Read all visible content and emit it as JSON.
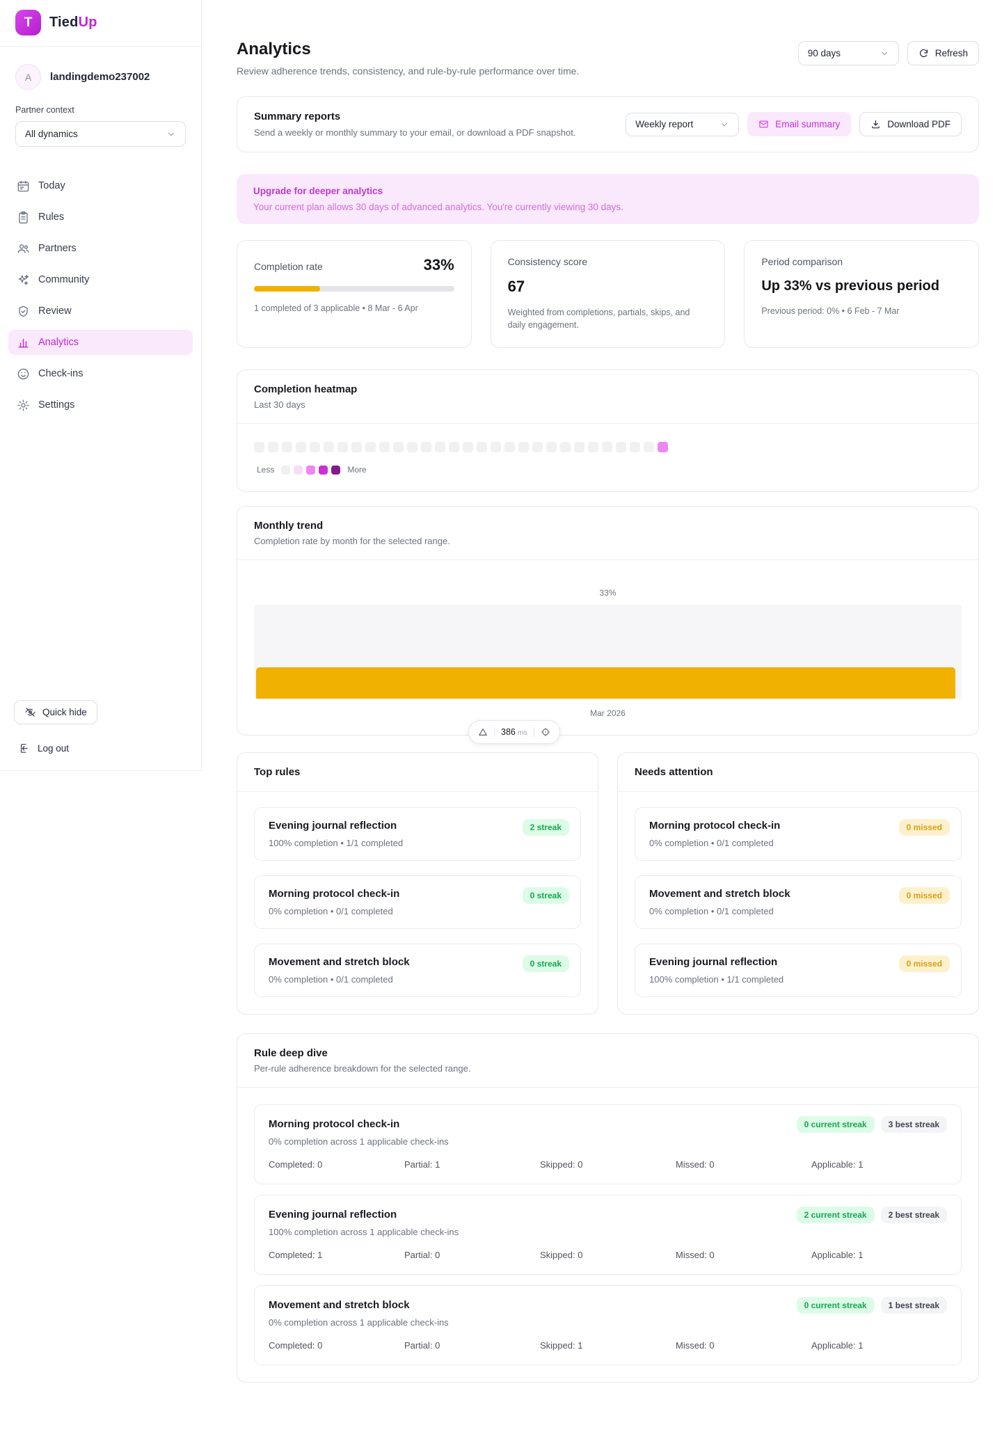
{
  "brand": {
    "logo_letter": "T",
    "name_primary": "Tied",
    "name_accent": "Up"
  },
  "sidebar": {
    "user": {
      "avatar_letter": "A",
      "username": "landingdemo237002"
    },
    "partner_context_label": "Partner context",
    "partner_select_value": "All dynamics",
    "items": [
      {
        "label": "Today"
      },
      {
        "label": "Rules"
      },
      {
        "label": "Partners"
      },
      {
        "label": "Community"
      },
      {
        "label": "Review"
      },
      {
        "label": "Analytics"
      },
      {
        "label": "Check-ins"
      },
      {
        "label": "Settings"
      }
    ],
    "quick_hide_label": "Quick hide",
    "logout_label": "Log out"
  },
  "header": {
    "title": "Analytics",
    "subtitle": "Review adherence trends, consistency, and rule-by-rule performance over time.",
    "range_select_value": "90 days",
    "refresh_label": "Refresh"
  },
  "summary": {
    "title": "Summary reports",
    "description": "Send a weekly or monthly summary to your email, or download a PDF snapshot.",
    "report_select_value": "Weekly report",
    "email_button_label": "Email summary",
    "download_button_label": "Download PDF"
  },
  "upgrade_banner": {
    "title": "Upgrade for deeper analytics",
    "body": "Your current plan allows 30 days of advanced analytics. You're currently viewing 30 days."
  },
  "stats": {
    "completion": {
      "label": "Completion rate",
      "value": "33%",
      "percent": 33,
      "caption": "1 completed of 3 applicable • 8 Mar - 6 Apr"
    },
    "consistency": {
      "label": "Consistency score",
      "value": "67",
      "caption": "Weighted from completions, partials, skips, and daily engagement."
    },
    "period": {
      "label": "Period comparison",
      "value": "Up 33% vs previous period",
      "caption": "Previous period: 0% • 6 Feb - 7 Mar"
    }
  },
  "heatmap": {
    "title": "Completion heatmap",
    "subtitle": "Last 30 days",
    "levels": [
      0,
      0,
      0,
      0,
      0,
      0,
      0,
      0,
      0,
      0,
      0,
      0,
      0,
      0,
      0,
      0,
      0,
      0,
      0,
      0,
      0,
      0,
      0,
      0,
      0,
      0,
      0,
      0,
      0,
      2
    ],
    "palette": [
      "#f0f1f3",
      "#f8ddf9",
      "#ee86f1",
      "#ca30d4",
      "#86198f"
    ],
    "legend_less": "Less",
    "legend_more": "More"
  },
  "chart_data": {
    "type": "bar",
    "title": "Monthly trend",
    "subtitle": "Completion rate by month for the selected range.",
    "categories": [
      "Mar 2026"
    ],
    "values": [
      33
    ],
    "value_labels": [
      "33%"
    ],
    "ylim": [
      0,
      100
    ],
    "bar_color": "#f0b100",
    "track_color": "#f6f6f8",
    "grid": false,
    "legend": false
  },
  "perf_widget": {
    "value": "386",
    "unit": "ms"
  },
  "top_rules": {
    "title": "Top rules",
    "items": [
      {
        "title": "Evening journal reflection",
        "caption": "100% completion • 1/1 completed",
        "badge": "2 streak"
      },
      {
        "title": "Morning protocol check-in",
        "caption": "0% completion • 0/1 completed",
        "badge": "0 streak"
      },
      {
        "title": "Movement and stretch block",
        "caption": "0% completion • 0/1 completed",
        "badge": "0 streak"
      }
    ]
  },
  "needs_attention": {
    "title": "Needs attention",
    "items": [
      {
        "title": "Morning protocol check-in",
        "caption": "0% completion • 0/1 completed",
        "badge": "0 missed"
      },
      {
        "title": "Movement and stretch block",
        "caption": "0% completion • 0/1 completed",
        "badge": "0 missed"
      },
      {
        "title": "Evening journal reflection",
        "caption": "100% completion • 1/1 completed",
        "badge": "0 missed"
      }
    ]
  },
  "deep_dive": {
    "title": "Rule deep dive",
    "subtitle": "Per-rule adherence breakdown for the selected range.",
    "rows": [
      {
        "title": "Morning protocol check-in",
        "caption": "0% completion across 1 applicable check-ins",
        "current_streak": "0 current streak",
        "best_streak": "3 best streak",
        "stats": [
          "Completed: 0",
          "Partial: 1",
          "Skipped: 0",
          "Missed: 0",
          "Applicable: 1"
        ]
      },
      {
        "title": "Evening journal reflection",
        "caption": "100% completion across 1 applicable check-ins",
        "current_streak": "2 current streak",
        "best_streak": "2 best streak",
        "stats": [
          "Completed: 1",
          "Partial: 0",
          "Skipped: 0",
          "Missed: 0",
          "Applicable: 1"
        ]
      },
      {
        "title": "Movement and stretch block",
        "caption": "0% completion across 1 applicable check-ins",
        "current_streak": "0 current streak",
        "best_streak": "1 best streak",
        "stats": [
          "Completed: 0",
          "Partial: 0",
          "Skipped: 1",
          "Missed: 0",
          "Applicable: 1"
        ]
      }
    ]
  },
  "colors": {
    "accent": "#c026d3",
    "accent_light_bg": "#fae8fd",
    "amber_bar": "#f0b100",
    "green_badge_bg": "#dcfce7",
    "green_badge_text": "#19a550",
    "amber_badge_bg": "#fdf1cd",
    "amber_badge_text": "#dd9d14"
  }
}
